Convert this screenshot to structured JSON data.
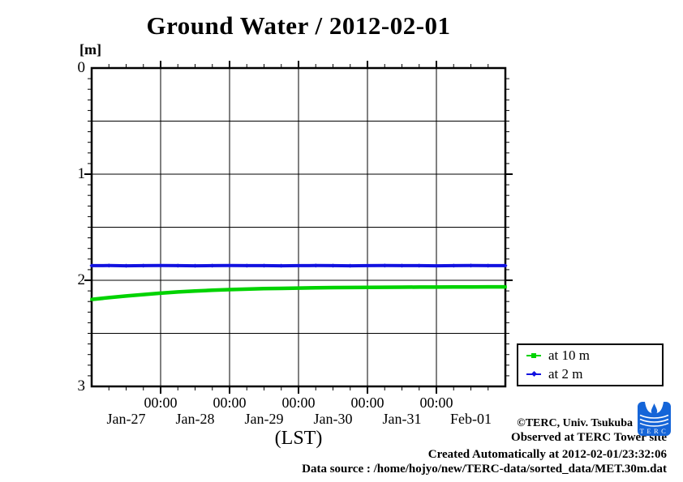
{
  "title": "Ground Water / 2012-02-01",
  "y_axis": {
    "unit_label": "[m]",
    "tick_labels": [
      "0",
      "1",
      "2",
      "3"
    ]
  },
  "x_axis": {
    "time_label": "00:00",
    "day_labels": [
      "Jan-27",
      "Jan-28",
      "Jan-29",
      "Jan-30",
      "Jan-31",
      "Feb-01"
    ],
    "axis_label": "(LST)"
  },
  "legend": {
    "items": [
      {
        "label": "at 10 m",
        "color": "#00d300",
        "marker": "square"
      },
      {
        "label": "at 2 m",
        "color": "#1212e0",
        "marker": "diamond"
      }
    ]
  },
  "footer": {
    "credit": "©TERC, Univ. Tsukuba",
    "observed": "Observed at TERC Tower site",
    "created": "Created Automatically at 2012-02-01/23:32:06",
    "source": "Data source : /home/hojyo/new/TERC-data/sorted_data/MET.30m.dat",
    "logo_text": "TERC",
    "logo_color": "#1565d8"
  },
  "chart_data": {
    "type": "line",
    "title": "Ground Water / 2012-02-01",
    "xlabel": "(LST)",
    "ylabel": "[m]",
    "ylim": [
      0,
      3
    ],
    "y_inverted": true,
    "grid": true,
    "grid_y_step": 0.5,
    "y_minor_tick_step": 0.1,
    "x_minor_tick_hours": 6,
    "x_major_tick_hours": 24,
    "x_range": [
      "Jan-27 00:00",
      "Feb-02 00:00"
    ],
    "x_hours": [
      0,
      6,
      12,
      18,
      24,
      30,
      36,
      42,
      48,
      54,
      60,
      66,
      72,
      78,
      84,
      90,
      96,
      102,
      108,
      114,
      120,
      126,
      132,
      138,
      144
    ],
    "series": [
      {
        "name": "at 10 m",
        "color": "#00d300",
        "marker": "square",
        "values": [
          2.18,
          2.163,
          2.148,
          2.134,
          2.121,
          2.11,
          2.101,
          2.094,
          2.088,
          2.083,
          2.079,
          2.076,
          2.073,
          2.071,
          2.069,
          2.068,
          2.067,
          2.066,
          2.065,
          2.064,
          2.064,
          2.063,
          2.063,
          2.062,
          2.062
        ]
      },
      {
        "name": "at 2 m",
        "color": "#1212e0",
        "marker": "diamond",
        "values": [
          1.862,
          1.861,
          1.863,
          1.862,
          1.861,
          1.862,
          1.863,
          1.862,
          1.861,
          1.862,
          1.862,
          1.863,
          1.862,
          1.861,
          1.862,
          1.863,
          1.862,
          1.861,
          1.862,
          1.862,
          1.863,
          1.862,
          1.861,
          1.862,
          1.862
        ]
      }
    ],
    "legend_position": "outside-right-bottom"
  }
}
